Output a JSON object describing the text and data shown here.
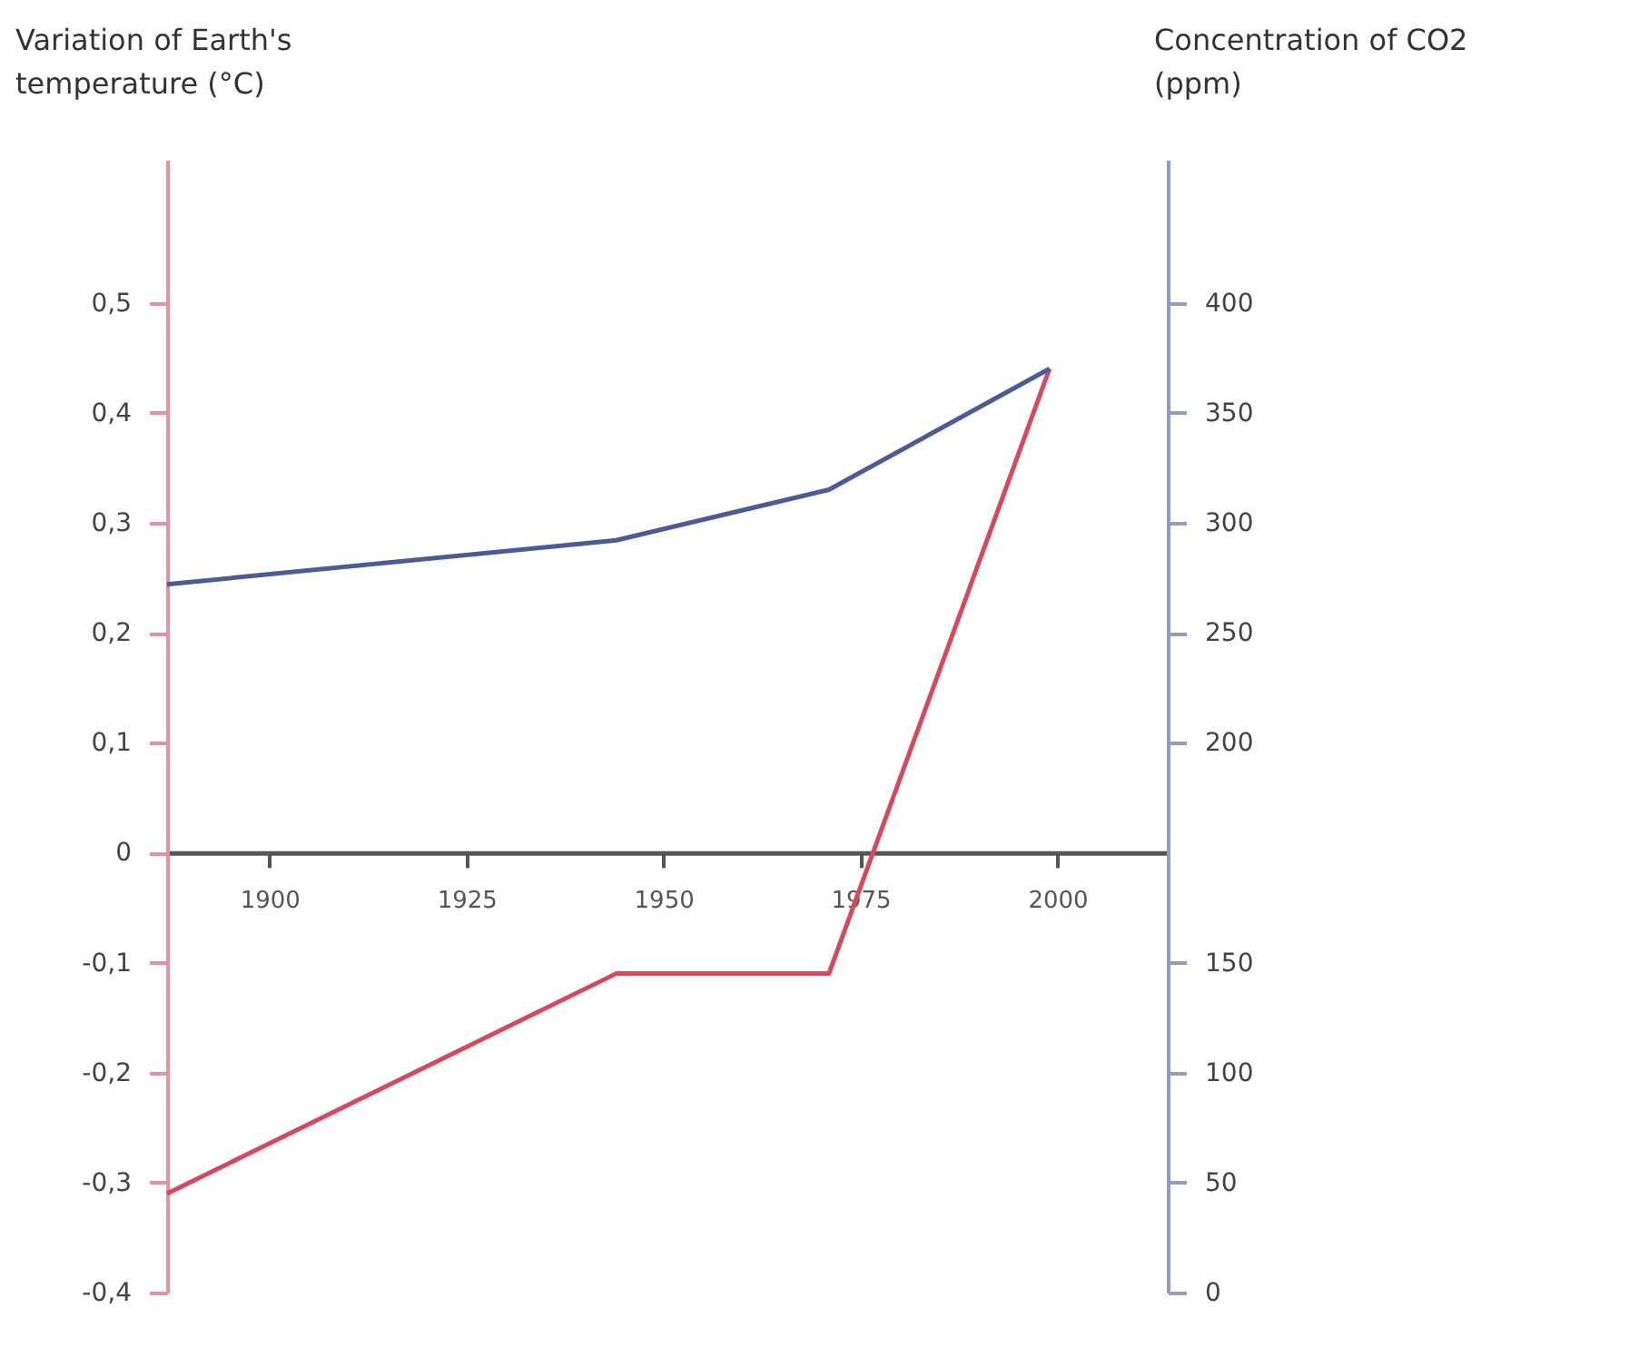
{
  "chart_data": {
    "type": "line",
    "ylabel": "Variation of Earth's temperature (°C)",
    "y2label": "Concentration of CO2 (ppm)",
    "series": [
      {
        "axis": "y",
        "color": "#d9475d",
        "x": [
          1887,
          1944,
          1971,
          1999
        ],
        "values": [
          -0.31,
          -0.11,
          -0.11,
          0.44
        ]
      },
      {
        "axis": "y2",
        "color": "#4a5a9a",
        "x": [
          1887,
          1944,
          1971,
          1999
        ],
        "values": [
          272,
          292,
          315,
          370
        ]
      }
    ],
    "xlim": [
      1887,
      2014
    ],
    "xticks": [
      1900,
      1925,
      1950,
      1975,
      2000
    ],
    "ylim": [
      -0.4,
      0.63
    ],
    "yticks": [
      {
        "value": -0.4,
        "label": "-0,4"
      },
      {
        "value": -0.3,
        "label": "-0,3"
      },
      {
        "value": -0.2,
        "label": "-0,2"
      },
      {
        "value": -0.1,
        "label": "-0,1"
      },
      0,
      {
        "value": 0.1,
        "label": "0,1"
      },
      {
        "value": 0.2,
        "label": "0,2"
      },
      {
        "value": 0.3,
        "label": "0,3"
      },
      {
        "value": 0.4,
        "label": "0,4"
      },
      {
        "value": 0.5,
        "label": "0,5"
      }
    ],
    "y2lim": [
      -50,
      465
    ],
    "y2ticks": [
      200,
      250,
      300,
      350,
      400
    ],
    "y3lim": [
      0,
      515
    ],
    "y3ticks": [
      0,
      50,
      100,
      150
    ],
    "grid": false,
    "marker": "none",
    "line_style": "solid"
  }
}
